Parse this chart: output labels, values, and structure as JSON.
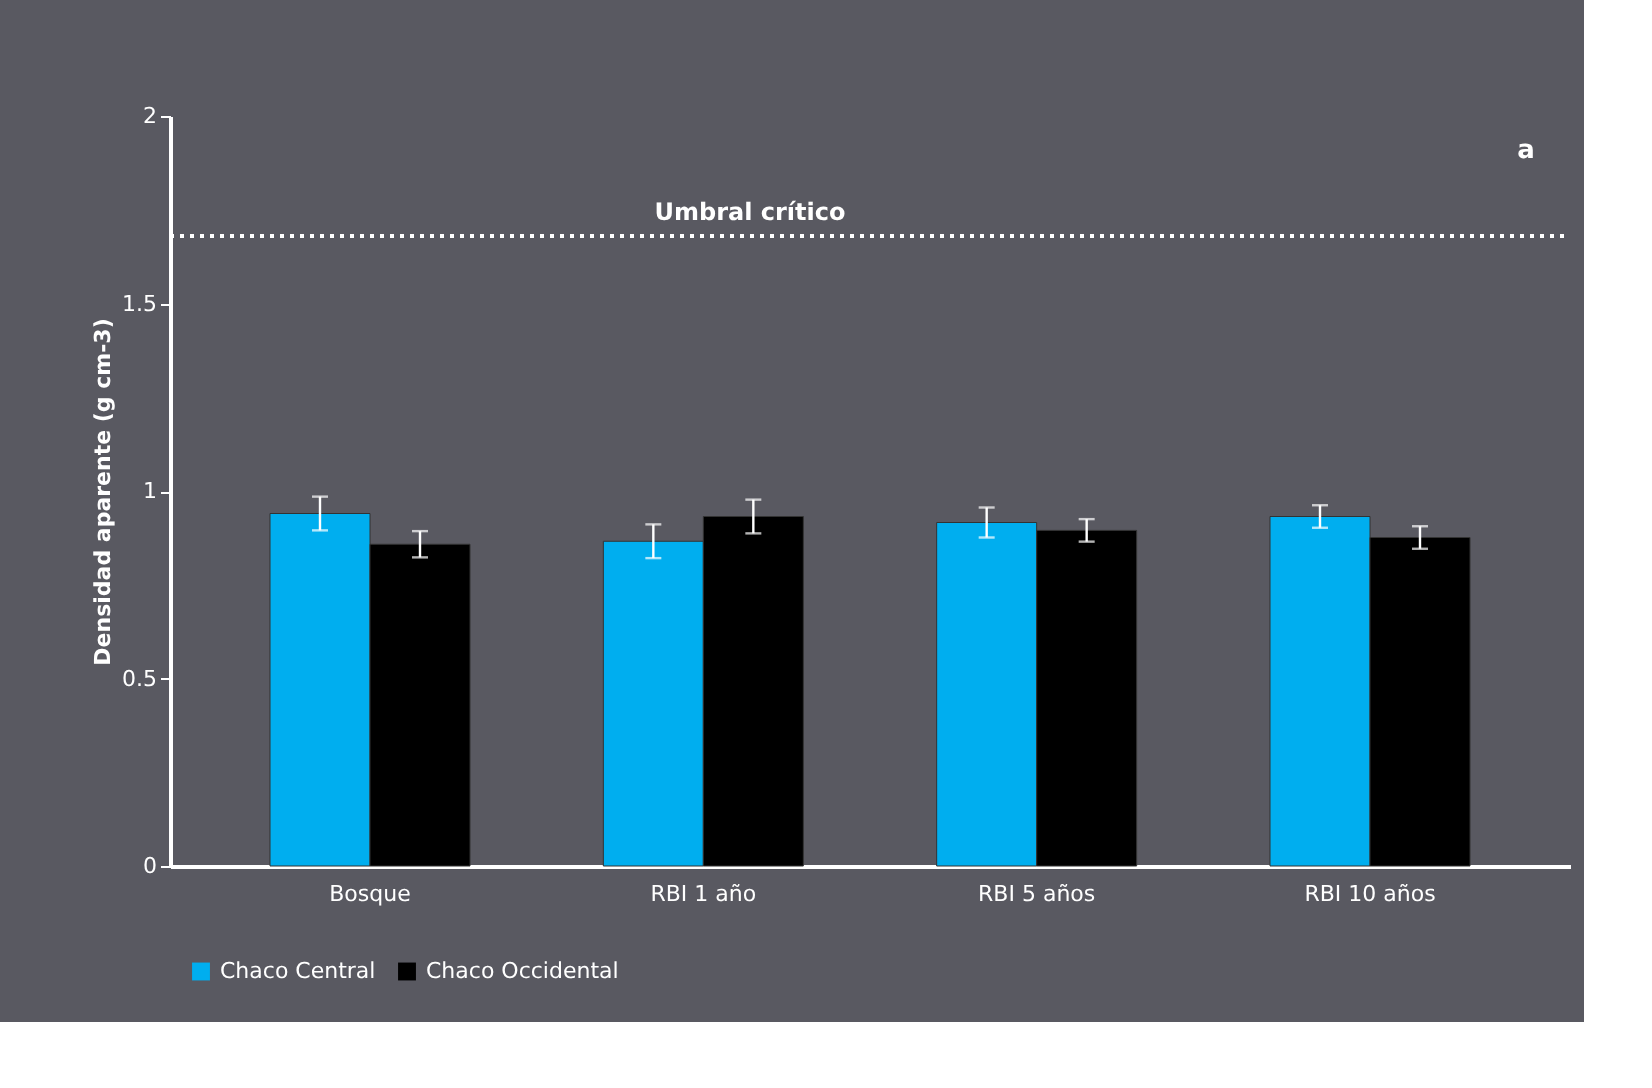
{
  "chart_data": {
    "type": "bar",
    "ylabel": "Densidad aparente (g cm-3)",
    "categories": [
      "Bosque",
      "RBI 1 año",
      "RBI 5 años",
      "RBI 10  años"
    ],
    "series": [
      {
        "name": "Chaco Central",
        "color": "#00aeef",
        "values": [
          0.94,
          0.866,
          0.916,
          0.932
        ],
        "errors": [
          0.045,
          0.045,
          0.04,
          0.03
        ]
      },
      {
        "name": "Chaco Occidental",
        "color": "#000000",
        "values": [
          0.858,
          0.932,
          0.895,
          0.876
        ],
        "errors": [
          0.035,
          0.045,
          0.03,
          0.03
        ]
      }
    ],
    "ylim": [
      0,
      2
    ],
    "yticks": [
      0,
      0.5,
      1,
      1.5,
      2
    ],
    "grid": false,
    "legend": "bottom",
    "ref_lines": [
      {
        "axis": "y",
        "value": 1.68,
        "label": "Umbral crítico",
        "color": "#ffffff",
        "line_style": "dotted"
      }
    ],
    "annotations": [
      "a"
    ]
  }
}
